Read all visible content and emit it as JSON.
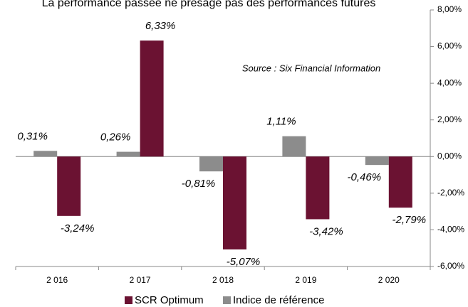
{
  "chart_data": {
    "type": "bar",
    "title": "La performance passée ne présage pas des performances futures",
    "annotation": "Source : Six Financial Information",
    "categories": [
      "2 016",
      "2 017",
      "2 018",
      "2 019",
      "2 020"
    ],
    "series": [
      {
        "name": "SCR Optimum",
        "color": "#6b1232",
        "values": [
          -3.24,
          6.33,
          -5.07,
          -3.42,
          -2.79
        ],
        "value_labels": [
          "-3,24%",
          "6,33%",
          "-5,07%",
          "-3,42%",
          "-2,79%"
        ]
      },
      {
        "name": "Indice de référence",
        "color": "#8c8c8c",
        "values": [
          0.31,
          0.26,
          -0.81,
          1.11,
          -0.46
        ],
        "value_labels": [
          "0,31%",
          "0,26%",
          "-0,81%",
          "1,11%",
          "-0,46%"
        ]
      }
    ],
    "ylim": [
      -6,
      8
    ],
    "yticks": [
      {
        "value": -6,
        "label": "-6,00%"
      },
      {
        "value": -4,
        "label": "-4,00%"
      },
      {
        "value": -2,
        "label": "-2,00%"
      },
      {
        "value": 0,
        "label": "0,00%"
      },
      {
        "value": 2,
        "label": "2,00%"
      },
      {
        "value": 4,
        "label": "4,00%"
      },
      {
        "value": 6,
        "label": "6,00%"
      },
      {
        "value": 8,
        "label": "8,00%"
      }
    ],
    "y_axis_side": "right",
    "legend": "bottom"
  }
}
